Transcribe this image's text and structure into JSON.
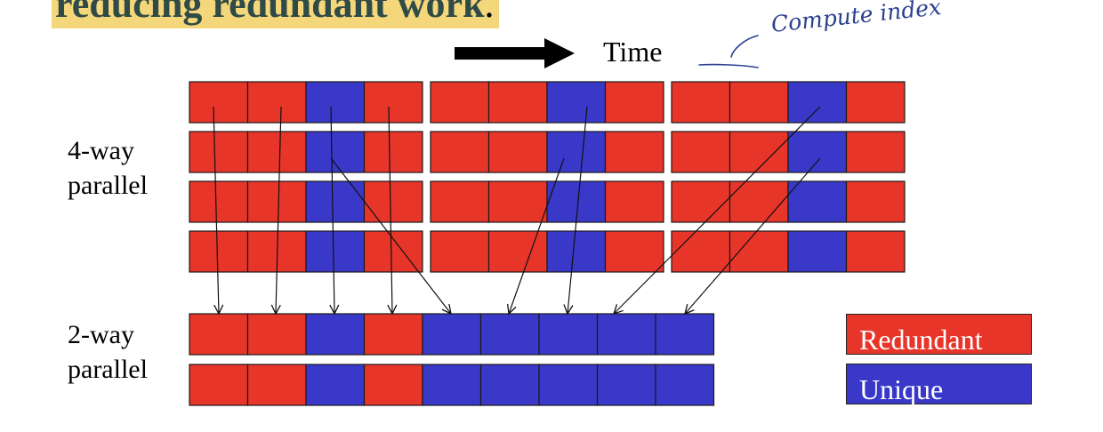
{
  "title": {
    "text": "reducing redundant work",
    "trailing": "."
  },
  "time_label": "Time",
  "handwritten_note": "Compute index",
  "labels": {
    "four_way": [
      "4-way",
      "parallel"
    ],
    "two_way": [
      "2-way",
      "parallel"
    ]
  },
  "legend": {
    "redundant": "Redundant",
    "unique": "Unique"
  },
  "colors": {
    "redundant": "#e8352a",
    "unique": "#3a38c8",
    "title_highlight": "#f3d77a",
    "title_text": "#2f4a47",
    "annotation_ink": "#2a3f8f"
  },
  "four_way_rows": [
    [
      "R",
      "R",
      "U",
      "R",
      "R",
      "R",
      "U",
      "R",
      "R",
      "R",
      "U",
      "R"
    ],
    [
      "R",
      "R",
      "U",
      "R",
      "R",
      "R",
      "U",
      "R",
      "R",
      "R",
      "U",
      "R"
    ],
    [
      "R",
      "R",
      "U",
      "R",
      "R",
      "R",
      "U",
      "R",
      "R",
      "R",
      "U",
      "R"
    ],
    [
      "R",
      "R",
      "U",
      "R",
      "R",
      "R",
      "U",
      "R",
      "R",
      "R",
      "U",
      "R"
    ]
  ],
  "two_way_rows": [
    [
      "R",
      "R",
      "U",
      "R",
      "U",
      "U",
      "U",
      "U",
      "U"
    ],
    [
      "R",
      "R",
      "U",
      "R",
      "U",
      "U",
      "U",
      "U",
      "U"
    ]
  ]
}
